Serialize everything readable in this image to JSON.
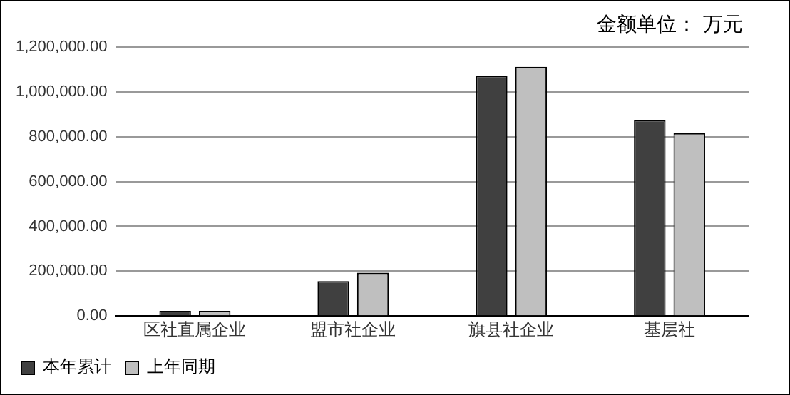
{
  "chart_data": {
    "type": "bar",
    "annotations": [
      "金额单位： 万元"
    ],
    "categories": [
      "区社直属企业",
      "盟市社企业",
      "旗县社企业",
      "基层社"
    ],
    "series": [
      {
        "name": "本年累计",
        "color": "#404040",
        "values": [
          23000,
          156000,
          1072000,
          874000
        ]
      },
      {
        "name": "上年同期",
        "color": "#bfbfbf",
        "values": [
          23000,
          193000,
          1112000,
          816000
        ]
      }
    ],
    "ylim": [
      0,
      1200000
    ],
    "yticks": [
      {
        "value": 0,
        "label": "0.00"
      },
      {
        "value": 200000,
        "label": "200,000.00"
      },
      {
        "value": 400000,
        "label": "400,000.00"
      },
      {
        "value": 600000,
        "label": "600,000.00"
      },
      {
        "value": 800000,
        "label": "800,000.00"
      },
      {
        "value": 1000000,
        "label": "1,000,000.00"
      },
      {
        "value": 1200000,
        "label": "1,200,000.00"
      }
    ],
    "grid": "y",
    "legend": "bottom left"
  }
}
